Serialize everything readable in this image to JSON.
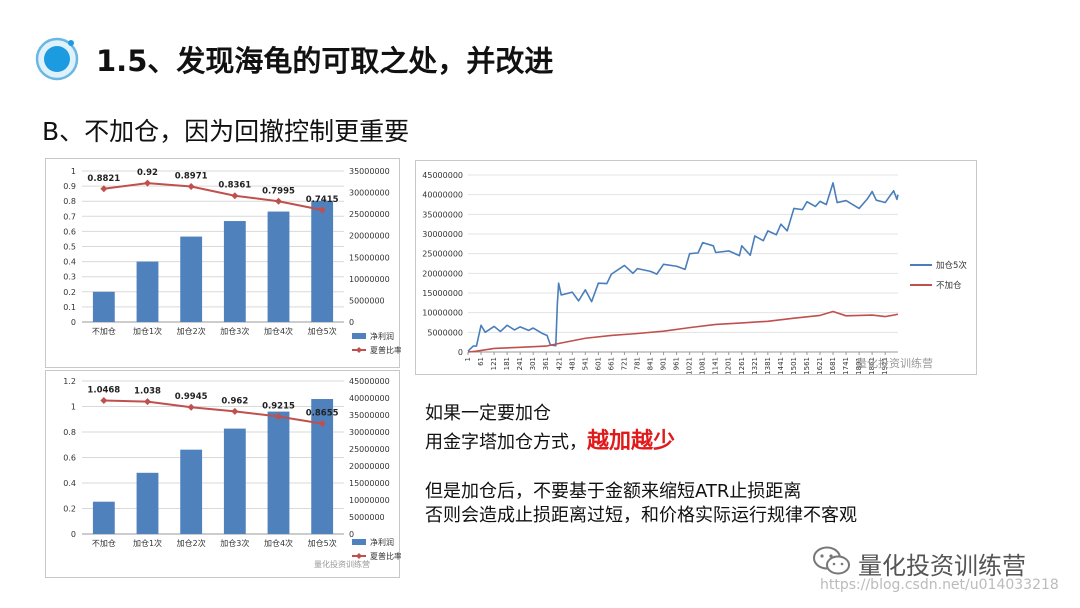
{
  "slide": {
    "title": "1.5、发现海龟的可取之处，并改进",
    "subtitle": "B、不加仓，因为回撤控制更重要"
  },
  "colors": {
    "bar": "#4f81bd",
    "red_line": "#c0504d",
    "blue_line": "#4a7ebb",
    "emphasis": "#e0191a"
  },
  "chart_data": [
    {
      "type": "bar",
      "categories": [
        "不加仓",
        "加仓1次",
        "加仓2次",
        "加仓3次",
        "加仓4次",
        "加仓5次"
      ],
      "series": [
        {
          "name": "净利润",
          "axis": "right",
          "values": [
            7000000,
            14000000,
            19800000,
            23400000,
            25600000,
            28100000
          ]
        },
        {
          "name": "夏普比率",
          "axis": "left",
          "kind": "line",
          "values": [
            0.8821,
            0.92,
            0.8971,
            0.8361,
            0.7995,
            0.7415
          ]
        }
      ],
      "data_labels": [
        "0.8821",
        "0.92",
        "0.8971",
        "0.8361",
        "0.7995",
        "0.7415"
      ],
      "y_left": {
        "ylim": [
          0,
          1
        ],
        "ticks": [
          "0",
          "0.1",
          "0.2",
          "0.3",
          "0.4",
          "0.5",
          "0.6",
          "0.7",
          "0.8",
          "0.9",
          "1"
        ]
      },
      "y_right": {
        "ylim": [
          0,
          35000000
        ],
        "ticks": [
          "0",
          "5000000",
          "10000000",
          "15000000",
          "20000000",
          "25000000",
          "30000000",
          "35000000"
        ]
      },
      "legend_position": "right"
    },
    {
      "type": "bar",
      "categories": [
        "不加仓",
        "加仓1次",
        "加仓2次",
        "加仓3次",
        "加仓4次",
        "加仓5次"
      ],
      "series": [
        {
          "name": "净利润",
          "axis": "right",
          "values": [
            9500000,
            18000000,
            24800000,
            31000000,
            36000000,
            39700000
          ]
        },
        {
          "name": "夏普比率",
          "axis": "left",
          "kind": "line",
          "values": [
            1.0468,
            1.038,
            0.9945,
            0.962,
            0.9215,
            0.8655
          ]
        }
      ],
      "data_labels": [
        "1.0468",
        "1.038",
        "0.9945",
        "0.962",
        "0.9215",
        "0.8655"
      ],
      "y_left": {
        "ylim": [
          0,
          1.2
        ],
        "ticks": [
          "0",
          "0.2",
          "0.4",
          "0.6",
          "0.8",
          "1",
          "1.2"
        ]
      },
      "y_right": {
        "ylim": [
          0,
          45000000
        ],
        "ticks": [
          "0",
          "5000000",
          "10000000",
          "15000000",
          "20000000",
          "25000000",
          "30000000",
          "35000000",
          "40000000",
          "45000000"
        ]
      },
      "legend_position": "right"
    },
    {
      "type": "line",
      "series": [
        {
          "name": "加仓5次",
          "color": "#4a7ebb"
        },
        {
          "name": "不加仓",
          "color": "#c0504d"
        }
      ],
      "x_ticks": [
        "1",
        "61",
        "121",
        "181",
        "241",
        "301",
        "361",
        "421",
        "481",
        "541",
        "601",
        "661",
        "721",
        "781",
        "841",
        "901",
        "961",
        "1021",
        "1081",
        "1141",
        "1201",
        "1261",
        "1321",
        "1381",
        "1441",
        "1501",
        "1561",
        "1621",
        "1681",
        "1741",
        "1801",
        "1861",
        "1921"
      ],
      "y_ticks": [
        "0",
        "5000000",
        "10000000",
        "15000000",
        "20000000",
        "25000000",
        "30000000",
        "35000000",
        "40000000",
        "45000000"
      ],
      "ylim": [
        0,
        45000000
      ],
      "xlim": [
        1,
        1980
      ],
      "series_points": {
        "加仓5次": [
          [
            1,
            200000
          ],
          [
            25,
            1500000
          ],
          [
            40,
            1500000
          ],
          [
            61,
            6800000
          ],
          [
            80,
            5000000
          ],
          [
            121,
            6500000
          ],
          [
            150,
            5200000
          ],
          [
            181,
            6800000
          ],
          [
            215,
            5600000
          ],
          [
            241,
            6400000
          ],
          [
            280,
            5500000
          ],
          [
            301,
            6100000
          ],
          [
            340,
            4800000
          ],
          [
            365,
            4200000
          ],
          [
            380,
            1800000
          ],
          [
            405,
            1600000
          ],
          [
            412,
            12000000
          ],
          [
            418,
            17500000
          ],
          [
            430,
            14500000
          ],
          [
            481,
            15200000
          ],
          [
            510,
            13000000
          ],
          [
            541,
            15800000
          ],
          [
            570,
            12800000
          ],
          [
            601,
            17500000
          ],
          [
            640,
            17400000
          ],
          [
            661,
            19800000
          ],
          [
            721,
            22000000
          ],
          [
            760,
            20000000
          ],
          [
            781,
            21200000
          ],
          [
            841,
            20500000
          ],
          [
            870,
            19800000
          ],
          [
            901,
            22300000
          ],
          [
            961,
            21800000
          ],
          [
            1000,
            21000000
          ],
          [
            1021,
            25000000
          ],
          [
            1060,
            25200000
          ],
          [
            1081,
            27800000
          ],
          [
            1130,
            27000000
          ],
          [
            1141,
            25300000
          ],
          [
            1201,
            25700000
          ],
          [
            1250,
            24500000
          ],
          [
            1261,
            27000000
          ],
          [
            1300,
            24600000
          ],
          [
            1321,
            29500000
          ],
          [
            1360,
            28300000
          ],
          [
            1381,
            30800000
          ],
          [
            1420,
            29800000
          ],
          [
            1441,
            32500000
          ],
          [
            1470,
            30800000
          ],
          [
            1501,
            36500000
          ],
          [
            1540,
            36200000
          ],
          [
            1561,
            38200000
          ],
          [
            1600,
            37000000
          ],
          [
            1621,
            38300000
          ],
          [
            1650,
            37500000
          ],
          [
            1681,
            43000000
          ],
          [
            1700,
            38000000
          ],
          [
            1741,
            38500000
          ],
          [
            1780,
            37200000
          ],
          [
            1801,
            36500000
          ],
          [
            1840,
            39000000
          ],
          [
            1861,
            40800000
          ],
          [
            1880,
            38600000
          ],
          [
            1921,
            38000000
          ],
          [
            1960,
            41000000
          ],
          [
            1975,
            38800000
          ],
          [
            1980,
            40000000
          ]
        ],
        "不加仓": [
          [
            1,
            0
          ],
          [
            40,
            200000
          ],
          [
            121,
            900000
          ],
          [
            241,
            1200000
          ],
          [
            361,
            1500000
          ],
          [
            421,
            2200000
          ],
          [
            541,
            3500000
          ],
          [
            661,
            4200000
          ],
          [
            781,
            4700000
          ],
          [
            901,
            5300000
          ],
          [
            1021,
            6200000
          ],
          [
            1141,
            7000000
          ],
          [
            1261,
            7400000
          ],
          [
            1381,
            7800000
          ],
          [
            1501,
            8600000
          ],
          [
            1621,
            9300000
          ],
          [
            1681,
            10300000
          ],
          [
            1741,
            9200000
          ],
          [
            1861,
            9400000
          ],
          [
            1921,
            9000000
          ],
          [
            1980,
            9600000
          ]
        ]
      },
      "legend_position": "right"
    }
  ],
  "text_block_1": {
    "line1": "如果一定要加仓",
    "line2_prefix": "用金字塔加仓方式，",
    "line2_emph": "越加越少"
  },
  "text_block_2": {
    "line1": "但是加仓后，不要基于金额来缩短ATR止损距离",
    "line2": "否则会造成止损距离过短，和价格实际运行规律不客观"
  },
  "watermarks": {
    "chart_wm": "量化投资训练营",
    "brand": "量化投资训练营",
    "url": "https://blog.csdn.net/u014033218"
  }
}
